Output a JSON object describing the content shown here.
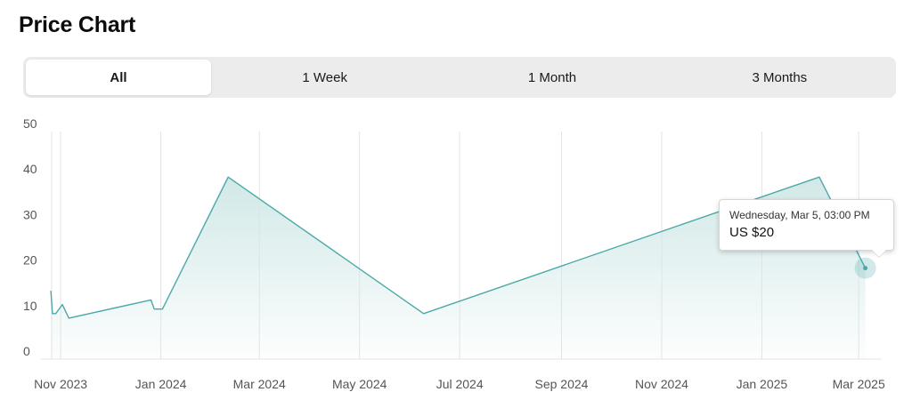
{
  "page": {
    "title": "Price Chart"
  },
  "tabs": [
    {
      "label": "All",
      "active": true
    },
    {
      "label": "1 Week",
      "active": false
    },
    {
      "label": "1 Month",
      "active": false
    },
    {
      "label": "3 Months",
      "active": false
    }
  ],
  "colors": {
    "line": "#4aa9a8",
    "fill": "#cfe7e6",
    "grid": "#e4e4e4",
    "axis_text": "#555555",
    "active_tab_bg": "#ffffff",
    "tabs_bg": "#ececec"
  },
  "tooltip": {
    "date": "Wednesday, Mar 5, 03:00 PM",
    "value": "US $20"
  },
  "chart_data": {
    "type": "area",
    "title": "",
    "xlabel": "",
    "ylabel": "",
    "ylim": [
      0,
      50
    ],
    "xlim": [
      "2023-10-20",
      "2025-03-15"
    ],
    "y_ticks": [
      "0",
      "10",
      "20",
      "30",
      "40",
      "50"
    ],
    "x_ticks": [
      {
        "date": "2023-11-01",
        "label": "Nov 2023"
      },
      {
        "date": "2024-01-01",
        "label": "Jan 2024"
      },
      {
        "date": "2024-03-01",
        "label": "Mar 2024"
      },
      {
        "date": "2024-05-01",
        "label": "May 2024"
      },
      {
        "date": "2024-07-01",
        "label": "Jul 2024"
      },
      {
        "date": "2024-09-01",
        "label": "Sep 2024"
      },
      {
        "date": "2024-11-01",
        "label": "Nov 2024"
      },
      {
        "date": "2025-01-01",
        "label": "Jan 2025"
      },
      {
        "date": "2025-03-01",
        "label": "Mar 2025"
      }
    ],
    "grid": "vertical",
    "series": [
      {
        "points": [
          {
            "x": "2023-10-26",
            "y": 15
          },
          {
            "x": "2023-10-27",
            "y": 10
          },
          {
            "x": "2023-10-29",
            "y": 10
          },
          {
            "x": "2023-11-02",
            "y": 12
          },
          {
            "x": "2023-11-06",
            "y": 9
          },
          {
            "x": "2023-12-26",
            "y": 13
          },
          {
            "x": "2023-12-28",
            "y": 11
          },
          {
            "x": "2024-01-02",
            "y": 11
          },
          {
            "x": "2024-02-11",
            "y": 40
          },
          {
            "x": "2024-06-09",
            "y": 10
          },
          {
            "x": "2025-02-05",
            "y": 40
          },
          {
            "x": "2025-03-05",
            "y": 20
          }
        ]
      }
    ],
    "highlight": {
      "x": "2025-03-05",
      "y": 20
    }
  }
}
